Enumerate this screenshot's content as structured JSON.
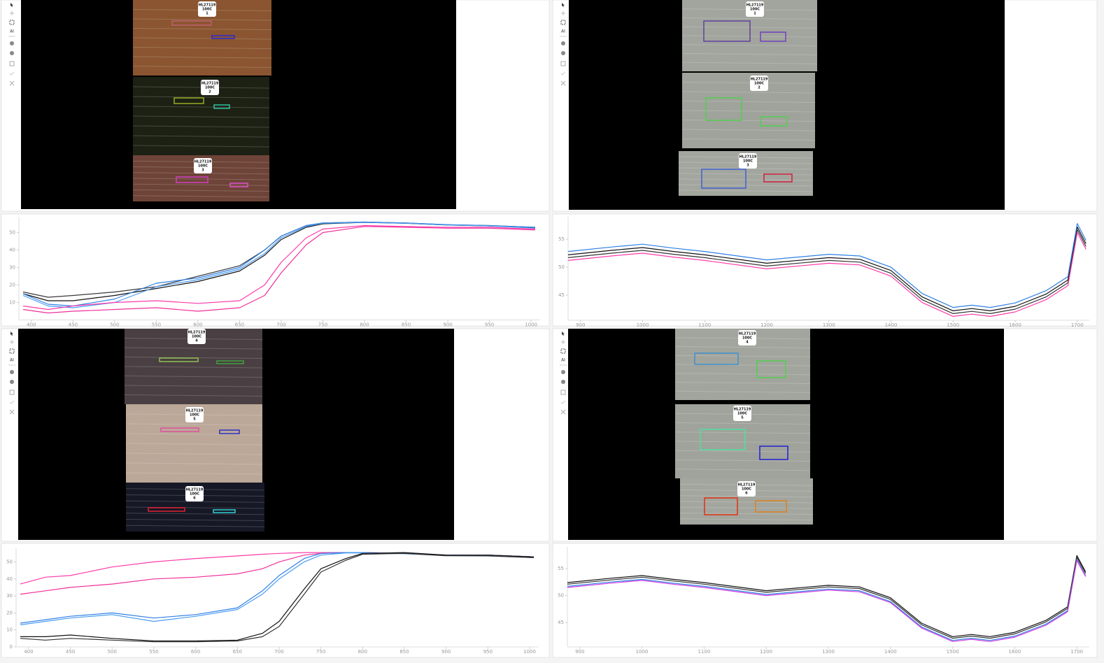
{
  "toolbar": {
    "ai": "AI"
  },
  "viewers": [
    {
      "swatches": [
        {
          "label": [
            "HL27119",
            "100C",
            "1"
          ]
        },
        {
          "label": [
            "HL27119",
            "100C",
            "2"
          ]
        },
        {
          "label": [
            "HL27119",
            "100C",
            "3"
          ]
        }
      ]
    },
    {
      "swatches": [
        {
          "label": [
            "HL27119",
            "100C",
            "1"
          ]
        },
        {
          "label": [
            "HL27119",
            "100C",
            "2"
          ]
        },
        {
          "label": [
            "HL27119",
            "100C",
            "3"
          ]
        }
      ]
    },
    {
      "swatches": [
        {
          "label": [
            "HL27119",
            "100C",
            "4"
          ]
        },
        {
          "label": [
            "HL27119",
            "100C",
            "5"
          ]
        },
        {
          "label": [
            "HL27119",
            "100C",
            "6"
          ]
        }
      ]
    },
    {
      "swatches": [
        {
          "label": [
            "HL27119",
            "100C",
            "4"
          ]
        },
        {
          "label": [
            "HL27119",
            "100C",
            "5"
          ]
        },
        {
          "label": [
            "HL27119",
            "100C",
            "6"
          ]
        }
      ]
    }
  ],
  "chart_data": [
    {
      "type": "line",
      "x": [
        390,
        420,
        450,
        500,
        550,
        600,
        650,
        680,
        700,
        730,
        750,
        800,
        850,
        900,
        950,
        1005
      ],
      "xlim": [
        385,
        1010
      ],
      "xticks": [
        400,
        450,
        500,
        550,
        600,
        650,
        700,
        750,
        800,
        850,
        900,
        950,
        1000
      ],
      "ylim": [
        0,
        59
      ],
      "yticks": [
        10,
        20,
        30,
        40,
        50
      ],
      "series": [
        {
          "color": "#3a3a3a",
          "values": [
            16,
            13,
            14,
            16,
            19,
            25,
            31,
            40,
            48,
            54,
            55.5,
            56,
            55.5,
            54.5,
            54,
            53
          ]
        },
        {
          "color": "#111111",
          "values": [
            15,
            11,
            11,
            14,
            18,
            22,
            28,
            37,
            46,
            53,
            55,
            55.8,
            55.3,
            54.3,
            53.8,
            52.8
          ]
        },
        {
          "color": "#2f80e6",
          "values": [
            15,
            9,
            8,
            12,
            21,
            24,
            30,
            40,
            48,
            54,
            55.5,
            56,
            55.5,
            54.5,
            54,
            53
          ]
        },
        {
          "color": "#4a9cf0",
          "values": [
            14,
            8,
            7,
            10,
            19,
            23,
            29,
            38,
            47,
            53.5,
            55.3,
            55.8,
            55.3,
            54.3,
            53.8,
            52.5
          ]
        },
        {
          "color": "#ff3aaa",
          "values": [
            8,
            6,
            8,
            10,
            11,
            9.5,
            11,
            20,
            33,
            47,
            52,
            54,
            53.5,
            53,
            53,
            52
          ]
        },
        {
          "color": "#f0309a",
          "values": [
            6,
            4,
            5,
            6,
            7,
            5,
            7,
            14,
            27,
            43,
            50,
            53.5,
            53,
            52.5,
            52.5,
            51.5
          ]
        }
      ]
    },
    {
      "type": "line",
      "x": [
        880,
        950,
        1000,
        1050,
        1100,
        1200,
        1300,
        1350,
        1400,
        1450,
        1500,
        1530,
        1560,
        1600,
        1650,
        1685,
        1700,
        1714
      ],
      "xlim": [
        880,
        1720
      ],
      "xticks": [
        900,
        1000,
        1100,
        1200,
        1300,
        1400,
        1500,
        1600,
        1700
      ],
      "ylim": [
        40.5,
        59
      ],
      "yticks": [
        45,
        50,
        55
      ],
      "series": [
        {
          "color": "#111111",
          "values": [
            52.2,
            53,
            53.5,
            52.8,
            52.2,
            50.7,
            51.7,
            51.4,
            49.4,
            44.7,
            42.2,
            42.6,
            42.2,
            43,
            45.2,
            47.7,
            57.2,
            54.2
          ]
        },
        {
          "color": "#333333",
          "values": [
            51.7,
            52.5,
            53,
            52.3,
            51.7,
            50.2,
            51.2,
            50.9,
            48.9,
            44.2,
            41.7,
            42.1,
            41.7,
            42.5,
            44.7,
            47.2,
            56.7,
            53.7
          ]
        },
        {
          "color": "#2f80e6",
          "values": [
            52.8,
            53.6,
            54.1,
            53.4,
            52.8,
            51.3,
            52.3,
            52,
            50,
            45.3,
            42.8,
            43.2,
            42.8,
            43.6,
            45.8,
            48.3,
            57.8,
            54.8
          ]
        },
        {
          "color": "#ff3aaa",
          "values": [
            51.2,
            52,
            52.5,
            51.8,
            51.2,
            49.7,
            50.7,
            50.4,
            48.4,
            43.7,
            41.2,
            41.6,
            41.2,
            42,
            44.2,
            46.7,
            56.2,
            53.2
          ]
        }
      ]
    },
    {
      "type": "line",
      "x": [
        390,
        420,
        450,
        500,
        550,
        600,
        650,
        680,
        700,
        730,
        750,
        780,
        800,
        850,
        900,
        950,
        1005
      ],
      "xlim": [
        385,
        1010
      ],
      "xticks": [
        400,
        450,
        500,
        550,
        600,
        650,
        700,
        750,
        800,
        850,
        900,
        950,
        1000
      ],
      "ylim": [
        0,
        58
      ],
      "yticks": [
        0,
        10,
        20,
        30,
        40,
        50
      ],
      "series": [
        {
          "color": "#ff3aaa",
          "values": [
            37,
            41,
            42,
            47,
            50,
            52,
            53.5,
            54.5,
            55,
            55.5,
            55.5,
            55.5,
            55.5,
            55,
            54,
            54,
            53
          ]
        },
        {
          "color": "#f0309a",
          "values": [
            31,
            33,
            35,
            37,
            40,
            41,
            43,
            46,
            50,
            54,
            55,
            55.5,
            55.5,
            55,
            54,
            54,
            53
          ]
        },
        {
          "color": "#2f80e6",
          "values": [
            14,
            16,
            18,
            20,
            17,
            19,
            23,
            33,
            42,
            52,
            55,
            55.5,
            55.5,
            55,
            54,
            54,
            53
          ]
        },
        {
          "color": "#4a9cf0",
          "values": [
            13,
            15,
            17,
            19,
            15,
            18,
            22,
            31,
            40,
            50,
            54,
            55.3,
            55.3,
            54.8,
            53.8,
            53.8,
            52.5
          ]
        },
        {
          "color": "#111111",
          "values": [
            6,
            6,
            7,
            5,
            3.5,
            3.5,
            4,
            8,
            15,
            34,
            46,
            52,
            55,
            55.5,
            54,
            54,
            53
          ]
        },
        {
          "color": "#333333",
          "values": [
            5,
            4,
            5,
            4,
            3,
            3,
            3.5,
            6,
            12,
            31,
            44,
            51,
            54.5,
            55,
            53.6,
            53.5,
            52.5
          ]
        }
      ]
    },
    {
      "type": "line",
      "x": [
        880,
        950,
        1000,
        1050,
        1100,
        1200,
        1300,
        1350,
        1400,
        1450,
        1500,
        1530,
        1560,
        1600,
        1650,
        1685,
        1700,
        1714
      ],
      "xlim": [
        880,
        1720
      ],
      "xticks": [
        900,
        1000,
        1100,
        1200,
        1300,
        1400,
        1500,
        1600,
        1700
      ],
      "ylim": [
        40.5,
        59
      ],
      "yticks": [
        45,
        50,
        55
      ],
      "series": [
        {
          "color": "#111111",
          "values": [
            52.4,
            53.2,
            53.7,
            53,
            52.4,
            50.9,
            51.9,
            51.6,
            49.6,
            44.9,
            42.4,
            42.8,
            42.4,
            43.2,
            45.4,
            47.9,
            57.4,
            54.4
          ]
        },
        {
          "color": "#333333",
          "values": [
            52.1,
            52.9,
            53.4,
            52.7,
            52.1,
            50.6,
            51.6,
            51.3,
            49.3,
            44.6,
            42.1,
            42.5,
            42.1,
            42.9,
            45.1,
            47.6,
            57.1,
            54.1
          ]
        },
        {
          "color": "#2f80e6",
          "values": [
            51.7,
            52.5,
            53,
            52.3,
            51.7,
            50.2,
            51.2,
            50.9,
            48.9,
            44.2,
            41.7,
            42.1,
            41.7,
            42.5,
            44.7,
            47.2,
            56.7,
            53.7
          ]
        },
        {
          "color": "#d23ae0",
          "values": [
            51.5,
            52.3,
            52.8,
            52.1,
            51.5,
            50,
            51,
            50.7,
            48.7,
            44,
            41.5,
            41.9,
            41.5,
            42.3,
            44.5,
            47,
            56.5,
            53.5
          ]
        }
      ]
    }
  ]
}
